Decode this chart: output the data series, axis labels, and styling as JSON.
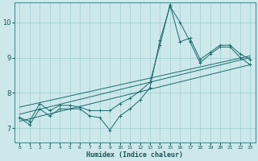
{
  "title": "",
  "xlabel": "Humidex (Indice chaleur)",
  "ylabel": "",
  "bg_color": "#cde8eb",
  "grid_color": "#9fcdd1",
  "line_color": "#1a6b6b",
  "xlim": [
    -0.5,
    23.5
  ],
  "ylim": [
    6.6,
    10.55
  ],
  "xticks": [
    0,
    1,
    2,
    3,
    4,
    5,
    6,
    7,
    8,
    9,
    10,
    11,
    12,
    13,
    14,
    15,
    16,
    17,
    18,
    19,
    20,
    21,
    22,
    23
  ],
  "yticks": [
    7,
    8,
    9,
    10
  ],
  "curve1": {
    "x": [
      0,
      1,
      2,
      3,
      4,
      5,
      6,
      7,
      8,
      9,
      10,
      11,
      12,
      13,
      14,
      15,
      16,
      17,
      18,
      19,
      20,
      21,
      22,
      23
    ],
    "y": [
      7.3,
      7.1,
      7.55,
      7.35,
      7.55,
      7.55,
      7.55,
      7.35,
      7.3,
      6.95,
      7.35,
      7.55,
      7.8,
      8.15,
      9.5,
      10.45,
      10.0,
      9.45,
      8.85,
      9.1,
      9.3,
      9.3,
      9.0,
      8.8
    ]
  },
  "curve2": {
    "x": [
      0,
      1,
      2,
      3,
      4,
      5,
      6,
      7,
      8,
      9,
      10,
      11,
      12,
      13,
      14,
      15,
      16,
      17,
      18,
      19,
      20,
      21,
      22,
      23
    ],
    "y": [
      7.3,
      7.2,
      7.7,
      7.5,
      7.65,
      7.65,
      7.6,
      7.5,
      7.5,
      7.5,
      7.7,
      7.85,
      8.05,
      8.3,
      9.35,
      10.5,
      9.45,
      9.55,
      8.95,
      9.15,
      9.35,
      9.35,
      9.1,
      8.95
    ]
  },
  "line1": {
    "x": [
      0,
      23
    ],
    "y": [
      7.2,
      8.8
    ]
  },
  "line2": {
    "x": [
      0,
      23
    ],
    "y": [
      7.4,
      9.0
    ]
  },
  "line3": {
    "x": [
      0,
      23
    ],
    "y": [
      7.6,
      9.05
    ]
  }
}
